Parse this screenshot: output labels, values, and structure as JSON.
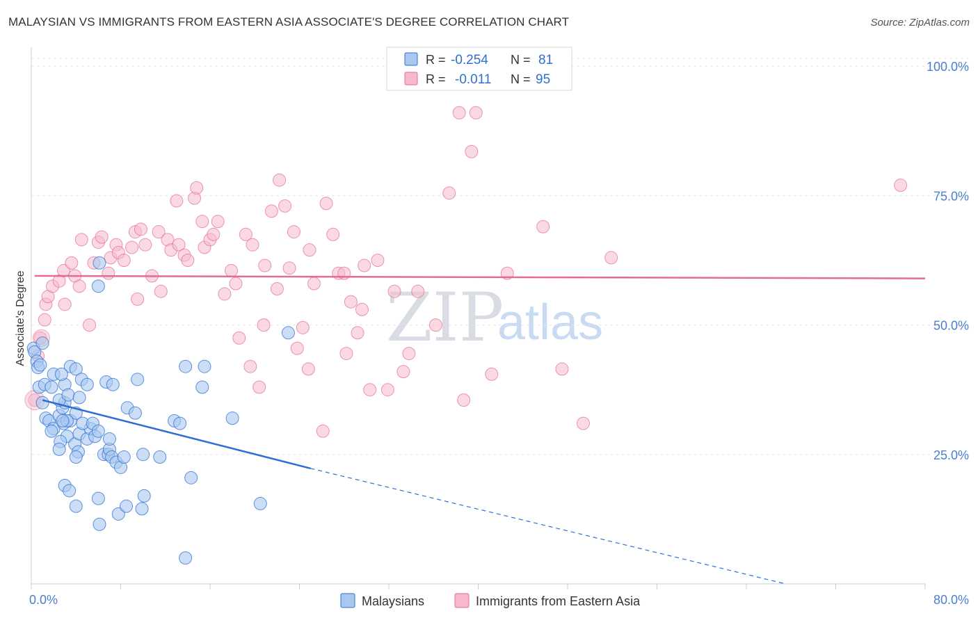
{
  "title": "MALAYSIAN VS IMMIGRANTS FROM EASTERN ASIA ASSOCIATE'S DEGREE CORRELATION CHART",
  "source": "Source: ZipAtlas.com",
  "watermark": {
    "zip": "ZIP",
    "atlas": "atlas"
  },
  "colors": {
    "blue": "#2e6fd1",
    "blue_fill": "#a9c8f0",
    "pink": "#e46b92",
    "pink_fill": "#f6b9cc",
    "grid": "#e3e6ea",
    "tick_label": "#4a7fd0"
  },
  "legend": {
    "rows": [
      {
        "r_label": "R = ",
        "r_value": "-0.254",
        "n_label": "N = ",
        "n_value": "81"
      },
      {
        "r_label": "R = ",
        "r_value": "-0.011",
        "n_label": "N = ",
        "n_value": "95"
      }
    ]
  },
  "chart_data": {
    "type": "scatter",
    "xlabel": "",
    "ylabel": "Associate's Degree",
    "xlim": [
      0,
      80
    ],
    "ylim": [
      0,
      105
    ],
    "x_tick_labels": [
      "0.0%",
      "80.0%"
    ],
    "y_ticks": [
      25,
      50,
      75,
      100
    ],
    "y_tick_labels": [
      "25.0%",
      "50.0%",
      "75.0%",
      "100.0%"
    ],
    "grid": true,
    "legend_position": "top-center",
    "series": [
      {
        "name": "Malaysians",
        "color": "#2e6fd1",
        "trend": {
          "x0": 1.0,
          "y0": 35.5,
          "x1": 25.0,
          "y1": 22.3,
          "dash_to_x": 67.5,
          "dash_to_y": 0
        },
        "points": [
          [
            0.2,
            45.5
          ],
          [
            0.3,
            44.8
          ],
          [
            0.5,
            43.0
          ],
          [
            0.6,
            41.8
          ],
          [
            0.8,
            42.3
          ],
          [
            1.0,
            46.5
          ],
          [
            0.7,
            38.0
          ],
          [
            1.2,
            38.5
          ],
          [
            1.0,
            35.0
          ],
          [
            1.3,
            32.0
          ],
          [
            1.6,
            31.5
          ],
          [
            2.0,
            30.0
          ],
          [
            1.8,
            29.5
          ],
          [
            2.5,
            32.5
          ],
          [
            2.8,
            34.0
          ],
          [
            3.0,
            35.0
          ],
          [
            2.9,
            31.0
          ],
          [
            3.5,
            31.5
          ],
          [
            3.2,
            28.5
          ],
          [
            2.6,
            27.5
          ],
          [
            2.5,
            26.0
          ],
          [
            4.0,
            33.0
          ],
          [
            3.9,
            27.0
          ],
          [
            4.2,
            25.5
          ],
          [
            4.0,
            24.5
          ],
          [
            4.3,
            29.0
          ],
          [
            5.0,
            28.0
          ],
          [
            5.3,
            30.0
          ],
          [
            5.7,
            28.5
          ],
          [
            6.5,
            25.0
          ],
          [
            6.9,
            25.0
          ],
          [
            7.0,
            26.0
          ],
          [
            7.2,
            24.5
          ],
          [
            7.6,
            23.5
          ],
          [
            8.0,
            22.5
          ],
          [
            8.3,
            24.5
          ],
          [
            8.6,
            34.0
          ],
          [
            9.3,
            33.0
          ],
          [
            3.5,
            42.0
          ],
          [
            4.0,
            41.5
          ],
          [
            4.5,
            39.5
          ],
          [
            3.0,
            38.5
          ],
          [
            5.0,
            38.5
          ],
          [
            6.7,
            39.0
          ],
          [
            7.3,
            38.5
          ],
          [
            9.5,
            39.5
          ],
          [
            6.0,
            57.5
          ],
          [
            6.1,
            62.0
          ],
          [
            2.5,
            35.5
          ],
          [
            3.3,
            36.5
          ],
          [
            4.3,
            36.0
          ],
          [
            3.0,
            19.0
          ],
          [
            3.4,
            18.0
          ],
          [
            4.0,
            15.0
          ],
          [
            6.0,
            16.5
          ],
          [
            6.1,
            11.5
          ],
          [
            7.8,
            13.5
          ],
          [
            8.5,
            15.0
          ],
          [
            9.9,
            14.5
          ],
          [
            10.1,
            17.0
          ],
          [
            12.8,
            31.5
          ],
          [
            13.3,
            31.0
          ],
          [
            13.8,
            42.0
          ],
          [
            15.5,
            42.0
          ],
          [
            15.3,
            38.0
          ],
          [
            18.0,
            32.0
          ],
          [
            14.3,
            20.5
          ],
          [
            20.5,
            15.5
          ],
          [
            13.8,
            5.0
          ],
          [
            23.0,
            48.5
          ],
          [
            3.2,
            31.5
          ],
          [
            4.6,
            31.0
          ],
          [
            2.0,
            40.5
          ],
          [
            2.7,
            40.5
          ],
          [
            1.8,
            38.0
          ],
          [
            5.5,
            31.0
          ],
          [
            6.0,
            29.5
          ],
          [
            2.8,
            31.5
          ],
          [
            7.0,
            28.0
          ],
          [
            10.0,
            25.0
          ],
          [
            11.5,
            24.5
          ]
        ]
      },
      {
        "name": "Immigrants from Eastern Asia",
        "color": "#e46b92",
        "trend": {
          "x0": 0.3,
          "y0": 59.5,
          "x1": 80.0,
          "y1": 59.0
        },
        "points": [
          [
            0.3,
            35.5
          ],
          [
            0.6,
            44.0
          ],
          [
            0.8,
            47.5
          ],
          [
            1.2,
            51.0
          ],
          [
            1.3,
            54.0
          ],
          [
            1.5,
            55.5
          ],
          [
            1.9,
            57.5
          ],
          [
            2.5,
            58.5
          ],
          [
            2.9,
            60.5
          ],
          [
            3.0,
            54.0
          ],
          [
            3.6,
            62.0
          ],
          [
            3.9,
            59.5
          ],
          [
            4.3,
            57.5
          ],
          [
            4.5,
            66.5
          ],
          [
            5.2,
            50.0
          ],
          [
            5.6,
            62.0
          ],
          [
            6.0,
            66.0
          ],
          [
            6.3,
            67.0
          ],
          [
            6.9,
            60.0
          ],
          [
            7.1,
            63.0
          ],
          [
            7.6,
            65.5
          ],
          [
            7.8,
            64.0
          ],
          [
            8.3,
            62.5
          ],
          [
            9.0,
            65.0
          ],
          [
            9.3,
            68.0
          ],
          [
            9.5,
            55.0
          ],
          [
            9.8,
            68.5
          ],
          [
            10.2,
            65.5
          ],
          [
            10.8,
            59.5
          ],
          [
            11.4,
            68.0
          ],
          [
            11.6,
            56.5
          ],
          [
            12.2,
            66.5
          ],
          [
            12.5,
            64.5
          ],
          [
            13.0,
            74.0
          ],
          [
            13.2,
            65.5
          ],
          [
            13.7,
            63.5
          ],
          [
            14.0,
            62.5
          ],
          [
            14.6,
            74.5
          ],
          [
            14.8,
            76.5
          ],
          [
            15.3,
            70.0
          ],
          [
            15.5,
            65.0
          ],
          [
            16.0,
            66.5
          ],
          [
            16.3,
            67.5
          ],
          [
            16.7,
            70.0
          ],
          [
            17.3,
            56.0
          ],
          [
            17.9,
            60.5
          ],
          [
            18.3,
            58.0
          ],
          [
            18.6,
            47.5
          ],
          [
            19.2,
            67.5
          ],
          [
            19.6,
            42.0
          ],
          [
            19.8,
            65.5
          ],
          [
            20.4,
            38.0
          ],
          [
            20.8,
            50.0
          ],
          [
            20.9,
            61.5
          ],
          [
            21.5,
            72.0
          ],
          [
            22.0,
            57.0
          ],
          [
            22.2,
            78.0
          ],
          [
            22.7,
            73.0
          ],
          [
            23.1,
            61.0
          ],
          [
            23.5,
            68.0
          ],
          [
            23.8,
            45.5
          ],
          [
            24.3,
            49.5
          ],
          [
            24.8,
            41.5
          ],
          [
            24.9,
            64.5
          ],
          [
            25.3,
            58.0
          ],
          [
            26.1,
            29.5
          ],
          [
            26.4,
            73.5
          ],
          [
            27.0,
            67.5
          ],
          [
            27.5,
            60.0
          ],
          [
            28.0,
            60.0
          ],
          [
            28.2,
            44.5
          ],
          [
            28.6,
            54.5
          ],
          [
            29.2,
            48.5
          ],
          [
            29.6,
            53.0
          ],
          [
            29.8,
            61.5
          ],
          [
            30.3,
            37.5
          ],
          [
            31.0,
            62.5
          ],
          [
            31.9,
            37.5
          ],
          [
            32.5,
            56.5
          ],
          [
            33.3,
            41.0
          ],
          [
            33.8,
            44.5
          ],
          [
            34.6,
            56.5
          ],
          [
            36.2,
            50.0
          ],
          [
            37.4,
            75.5
          ],
          [
            38.3,
            91.0
          ],
          [
            38.7,
            35.5
          ],
          [
            39.4,
            83.5
          ],
          [
            39.8,
            91.0
          ],
          [
            41.2,
            40.5
          ],
          [
            42.6,
            60.0
          ],
          [
            45.8,
            69.0
          ],
          [
            47.5,
            41.5
          ],
          [
            49.4,
            31.0
          ],
          [
            51.9,
            63.0
          ],
          [
            77.8,
            77.0
          ]
        ]
      }
    ]
  },
  "bottom_legend": [
    {
      "label": "Malaysians"
    },
    {
      "label": "Immigrants from Eastern Asia"
    }
  ]
}
